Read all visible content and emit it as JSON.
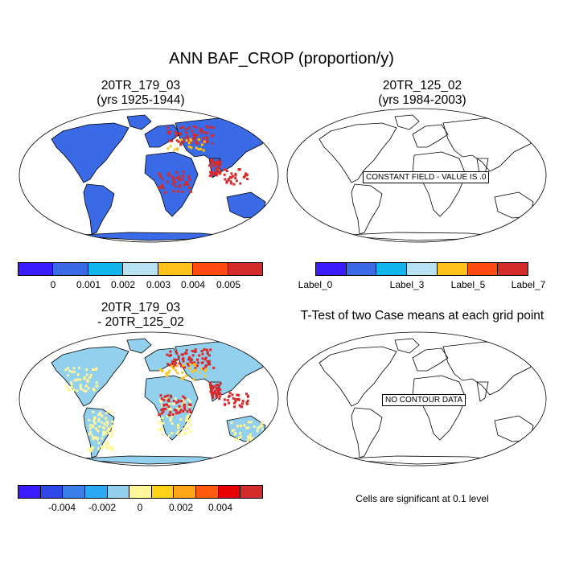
{
  "title": "ANN BAF_CROP (proportion/y)",
  "panels": {
    "top_left": {
      "title_line1": "20TR_179_03",
      "title_line2": "(yrs 1925-1944)"
    },
    "top_right": {
      "title_line1": "20TR_125_02",
      "title_line2": "(yrs 1984-2003)",
      "map_label": "CONSTANT FIELD - VALUE IS .0"
    },
    "bottom_left": {
      "title_line1": "20TR_179_03",
      "title_line2": "- 20TR_125_02"
    },
    "bottom_right": {
      "title": "T-Test of two Case means at each grid point",
      "map_label": "NO CONTOUR DATA",
      "note": "Cells are significant at 0.1 level"
    }
  },
  "colorbars": {
    "top_left": {
      "colors": [
        "#3a1cff",
        "#3a6ae6",
        "#12b4ee",
        "#b8e2f2",
        "#ffc21a",
        "#ff4a10",
        "#d42b2b"
      ],
      "labels": [
        "0",
        "0.001",
        "0.002",
        "0.003",
        "0.004",
        "0.005"
      ]
    },
    "top_right": {
      "colors": [
        "#3a1cff",
        "#3a6ae6",
        "#12b4ee",
        "#b8e2f2",
        "#ffc21a",
        "#ff4a10",
        "#d42b2b"
      ],
      "labels": [
        "Label_0",
        "Label_3",
        "Label_5",
        "Label_7"
      ]
    },
    "bottom_left": {
      "colors": [
        "#3a1cff",
        "#2e48e8",
        "#3a80e8",
        "#2aa8f0",
        "#92d0ee",
        "#fff59a",
        "#ffd21a",
        "#ffa51a",
        "#ff5a10",
        "#e60000",
        "#d42b2b"
      ],
      "labels": [
        "-0.004",
        "-0.002",
        "0",
        "0.002",
        "0.004"
      ]
    }
  },
  "map_fills": {
    "top_left_land": "#3a6ae6",
    "bottom_left_land": "#92d0ee",
    "hotspot_red": "#d42b2b",
    "hotspot_orange": "#ffc21a",
    "yellow": "#fff59a"
  }
}
